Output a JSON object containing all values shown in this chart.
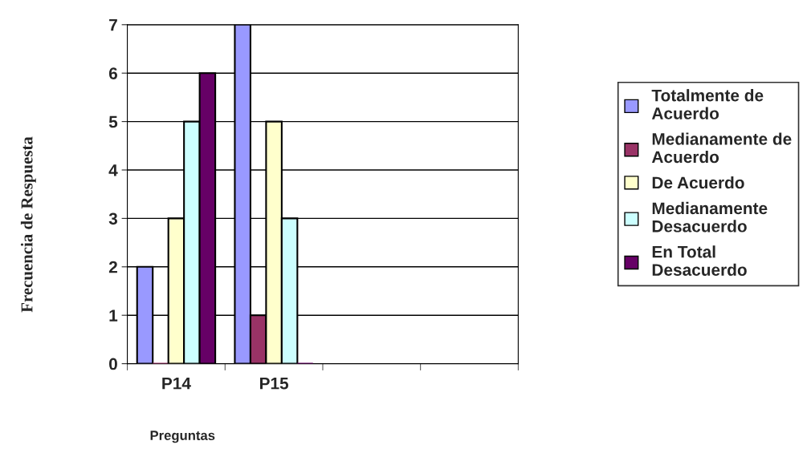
{
  "chart_data": {
    "type": "bar",
    "categories": [
      "P14",
      "P15",
      null,
      null
    ],
    "series": [
      {
        "name": "Totalmente de\nAcuerdo",
        "color": "#9999ff",
        "values": [
          2,
          7,
          null,
          null
        ]
      },
      {
        "name": "Medianamente de\nAcuerdo",
        "color": "#993366",
        "values": [
          0,
          1,
          null,
          null
        ]
      },
      {
        "name": "De Acuerdo",
        "color": "#ffffcc",
        "values": [
          3,
          5,
          null,
          null
        ]
      },
      {
        "name": "Medianamente\nDesacuerdo",
        "color": "#ccffff",
        "values": [
          5,
          3,
          null,
          null
        ]
      },
      {
        "name": "En Total\nDesacuerdo",
        "color": "#660066",
        "values": [
          6,
          0,
          null,
          null
        ]
      }
    ],
    "xlabel": "Preguntas",
    "ylabel": "Frecuencia de Respuesta",
    "ylim": [
      0,
      7
    ],
    "yticks": [
      0,
      1,
      2,
      3,
      4,
      5,
      6,
      7
    ],
    "grid": "y",
    "legend": "right"
  }
}
